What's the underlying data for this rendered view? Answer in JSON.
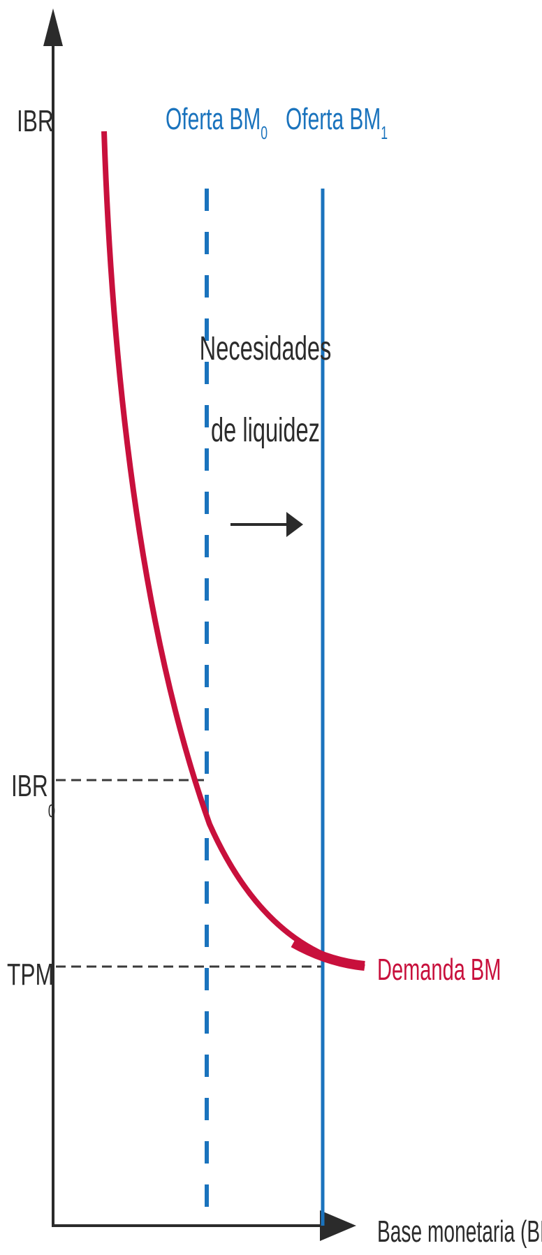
{
  "labels": {
    "y_axis": "IBR",
    "x_axis": "Base monetaria (BM)",
    "supply0_main": "Oferta BM",
    "supply0_sub": "0",
    "supply1_main": "Oferta BM",
    "supply1_sub": "1",
    "ibr0_main": "IBR",
    "ibr0_sub": "0",
    "tpm": "TPM",
    "demand": "Demanda BM",
    "note_line1": "Necesidades",
    "note_line2": "de liquidez"
  },
  "colors": {
    "axis": "#2b2b2b",
    "supply": "#1a73bd",
    "demand": "#c8103c",
    "guide": "#3a3a3a",
    "text_dark": "#2b2b2b"
  }
}
